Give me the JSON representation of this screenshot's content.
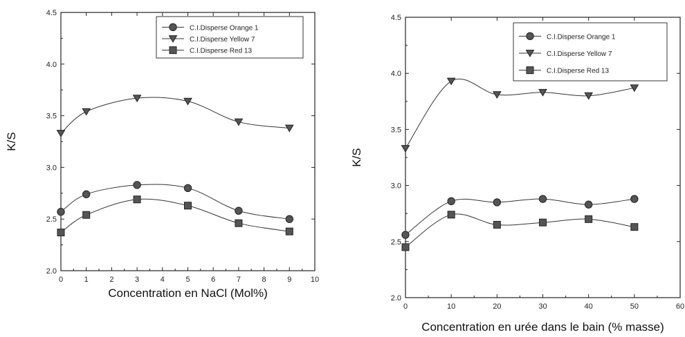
{
  "chart_data": [
    {
      "type": "line",
      "xlabel": "Concentration en NaCl (Mol%)",
      "ylabel": "K/S",
      "xlim": [
        0,
        10
      ],
      "ylim": [
        2.0,
        4.5
      ],
      "xticks": [
        0,
        1,
        2,
        3,
        4,
        5,
        6,
        7,
        8,
        9,
        10
      ],
      "yticks": [
        2.0,
        2.5,
        3.0,
        3.5,
        4.0,
        4.5
      ],
      "x": [
        0,
        1,
        3,
        5,
        7,
        9
      ],
      "grid": false,
      "legend_position": "top-right",
      "series": [
        {
          "name": "C.I.Disperse Orange 1",
          "marker": "circle",
          "values": [
            2.57,
            2.74,
            2.83,
            2.8,
            2.58,
            2.5
          ]
        },
        {
          "name": "C.I.Disperse Yellow 7",
          "marker": "triangle-down",
          "values": [
            3.33,
            3.54,
            3.67,
            3.64,
            3.44,
            3.38
          ]
        },
        {
          "name": "C.I.Disperse Red 13",
          "marker": "square",
          "values": [
            2.37,
            2.54,
            2.69,
            2.63,
            2.46,
            2.38
          ]
        }
      ]
    },
    {
      "type": "line",
      "xlabel": "Concentration en urée dans le bain (% masse)",
      "ylabel": "K/S",
      "xlim": [
        0,
        60
      ],
      "ylim": [
        2.0,
        4.5
      ],
      "xticks": [
        0,
        10,
        20,
        30,
        40,
        50,
        60
      ],
      "yticks": [
        2.0,
        2.5,
        3.0,
        3.5,
        4.0,
        4.5
      ],
      "x": [
        0,
        10,
        20,
        30,
        40,
        50
      ],
      "grid": false,
      "legend_position": "top-right",
      "series": [
        {
          "name": "C.I.Disperse Orange 1",
          "marker": "circle",
          "values": [
            2.56,
            2.86,
            2.85,
            2.88,
            2.83,
            2.88
          ]
        },
        {
          "name": "C.I.Disperse Yellow 7",
          "marker": "triangle-down",
          "values": [
            3.33,
            3.93,
            3.81,
            3.83,
            3.8,
            3.87
          ]
        },
        {
          "name": "C.I.Disperse Red 13",
          "marker": "square",
          "values": [
            2.45,
            2.74,
            2.65,
            2.67,
            2.7,
            2.63
          ]
        }
      ]
    }
  ]
}
